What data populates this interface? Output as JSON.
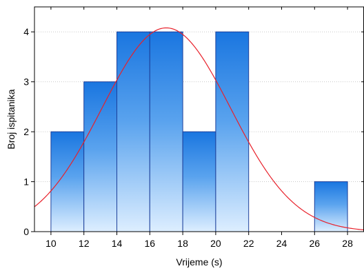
{
  "chart_data": {
    "type": "bar",
    "xlabel": "Vrijeme (s)",
    "ylabel": "Broj ispitanika",
    "xlim": [
      9,
      29
    ],
    "ylim": [
      0,
      4.5
    ],
    "grid": true,
    "x_ticks": [
      10,
      12,
      14,
      16,
      18,
      20,
      22,
      24,
      26,
      28
    ],
    "y_ticks": [
      0,
      1,
      2,
      3,
      4
    ],
    "bins": [
      {
        "from": 10,
        "to": 12,
        "count": 2
      },
      {
        "from": 12,
        "to": 14,
        "count": 3
      },
      {
        "from": 14,
        "to": 16,
        "count": 4
      },
      {
        "from": 16,
        "to": 18,
        "count": 4
      },
      {
        "from": 18,
        "to": 20,
        "count": 2
      },
      {
        "from": 20,
        "to": 22,
        "count": 4
      },
      {
        "from": 22,
        "to": 24,
        "count": 0
      },
      {
        "from": 24,
        "to": 26,
        "count": 0
      },
      {
        "from": 26,
        "to": 28,
        "count": 1
      }
    ],
    "fitted_curve": {
      "type": "normal",
      "mean": 17.0,
      "sd": 3.9,
      "peak": 4.08,
      "color": "#e8202a"
    },
    "bar_fill_top": "#1a76e0",
    "bar_fill_bottom": "#ddeeff",
    "bar_stroke": "#1c3f9a"
  }
}
